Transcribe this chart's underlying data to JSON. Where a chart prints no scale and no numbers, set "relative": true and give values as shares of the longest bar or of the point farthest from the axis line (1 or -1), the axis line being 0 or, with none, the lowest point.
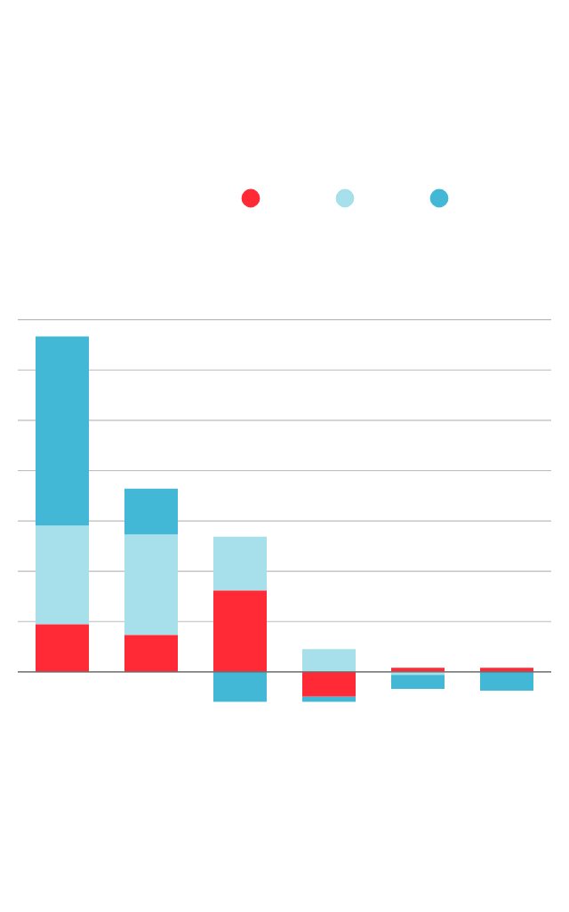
{
  "chart_data": {
    "type": "bar",
    "stacked": true,
    "relative": true,
    "grid": "y",
    "categories": [
      null,
      null,
      null,
      null,
      null,
      null
    ],
    "series": [
      {
        "color": "#ff2a35",
        "values": [
          0.142,
          0.11,
          0.243,
          -0.074,
          0.012,
          0.012
        ]
      },
      {
        "color": "#a7dfeb",
        "values": [
          0.294,
          0.3,
          0.16,
          0.068,
          -0.009,
          null
        ]
      },
      {
        "color": "#43b8d6",
        "values": [
          0.564,
          0.136,
          -0.089,
          -0.015,
          -0.042,
          -0.056
        ]
      }
    ]
  }
}
